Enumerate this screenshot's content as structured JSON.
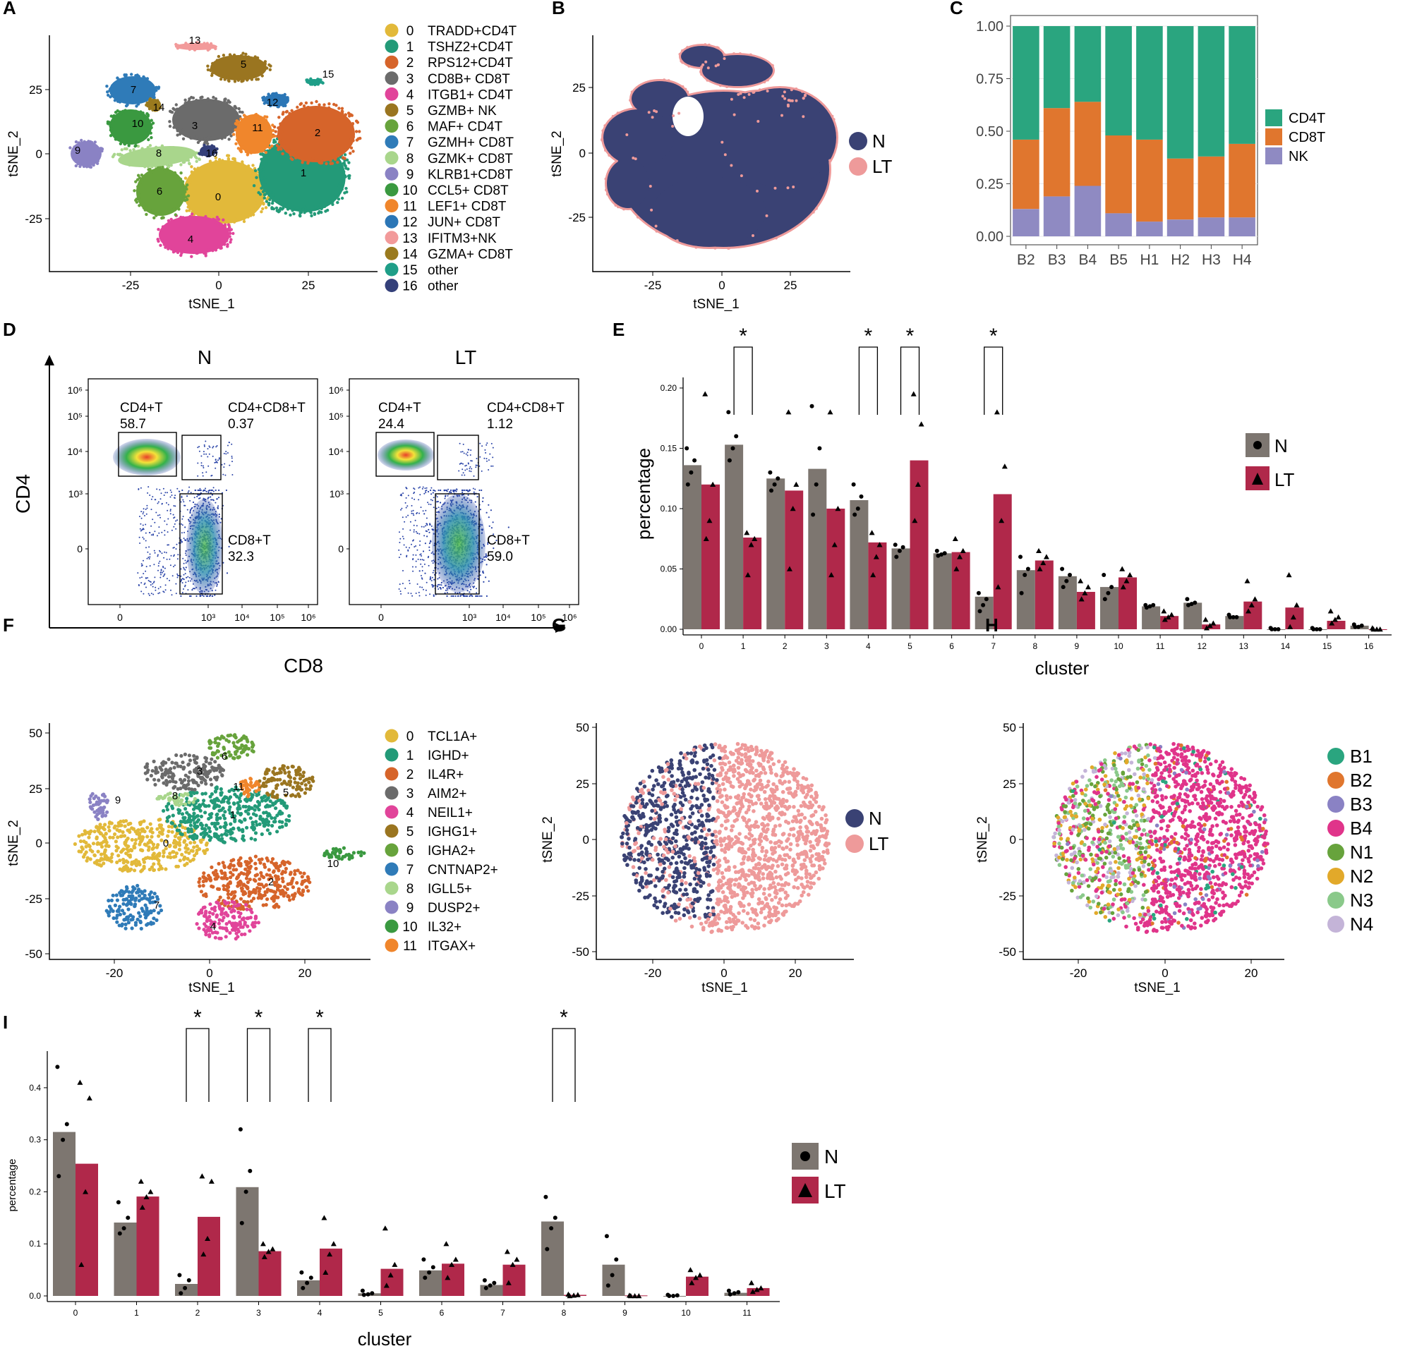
{
  "colors": {
    "N": "#3a4274",
    "LT": "#ee9a9a",
    "bar_N": "#7d7670",
    "bar_LT": "#b0284a",
    "CD4T": "#2aa57f",
    "CD8T": "#e0762e",
    "NK": "#8f8ac2"
  },
  "panels": {
    "A": {
      "label": "A",
      "xlabel": "tSNE_1",
      "ylabel": "tSNE_2",
      "xticks": [
        "-25",
        "0",
        "25"
      ],
      "yticks": [
        "25",
        "0",
        "-25"
      ],
      "legend": [
        {
          "key": "0",
          "text": "TRADD+CD4T",
          "color": "#e2b93a"
        },
        {
          "key": "1",
          "text": "TSHZ2+CD4T",
          "color": "#239a78"
        },
        {
          "key": "2",
          "text": "RPS12+CD4T",
          "color": "#d6642a"
        },
        {
          "key": "3",
          "text": "CD8B+ CD8T",
          "color": "#6b6b6b"
        },
        {
          "key": "4",
          "text": "ITGB1+ CD4T",
          "color": "#e1449a"
        },
        {
          "key": "5",
          "text": "GZMB+ NK",
          "color": "#9a7520"
        },
        {
          "key": "6",
          "text": "MAF+  CD4T",
          "color": "#67a33c"
        },
        {
          "key": "7",
          "text": "GZMH+ CD8T",
          "color": "#2f7bb8"
        },
        {
          "key": "8",
          "text": "GZMK+ CD8T",
          "color": "#a9d68c"
        },
        {
          "key": "9",
          "text": "KLRB1+CD8T",
          "color": "#8a82c4"
        },
        {
          "key": "10",
          "text": "CCL5+  CD8T",
          "color": "#3a9940"
        },
        {
          "key": "11",
          "text": "LEF1+  CD8T",
          "color": "#f0862c"
        },
        {
          "key": "12",
          "text": "JUN+    CD8T",
          "color": "#2b76b6"
        },
        {
          "key": "13",
          "text": "IFITM3+NK",
          "color": "#f29a9a"
        },
        {
          "key": "14",
          "text": "GZMA+ CD8T",
          "color": "#9a7a1e"
        },
        {
          "key": "15",
          "text": "other",
          "color": "#1f9e88"
        },
        {
          "key": "16",
          "text": "other",
          "color": "#34407a"
        }
      ],
      "cluster_labels": [
        "13",
        "5",
        "15",
        "7",
        "12",
        "14",
        "10",
        "3",
        "11",
        "2",
        "9",
        "8",
        "16",
        "1",
        "6",
        "0",
        "4"
      ]
    },
    "B": {
      "label": "B",
      "xlabel": "tSNE_1",
      "ylabel": "tSNE_2",
      "xticks": [
        "-25",
        "0",
        "25"
      ],
      "yticks": [
        "25",
        "0",
        "-25"
      ],
      "legend": [
        {
          "text": "N"
        },
        {
          "text": "LT"
        }
      ]
    },
    "D": {
      "label": "D",
      "title_N": "N",
      "title_LT": "LT",
      "ylabel": "CD4",
      "xlabel": "CD8",
      "y_ticks": [
        "10⁶",
        "10⁵",
        "10⁴",
        "10³",
        "0"
      ],
      "x_ticks": [
        "0",
        "10³",
        "10⁴",
        "10⁵",
        "10⁶"
      ],
      "gates_N": {
        "cd4": "CD4+T",
        "cd4_val": "58.7",
        "dp": "CD4+CD8+T",
        "dp_val": "0.37",
        "cd8": "CD8+T",
        "cd8_val": "32.3"
      },
      "gates_LT": {
        "cd4": "CD4+T",
        "cd4_val": "24.4",
        "dp": "CD4+CD8+T",
        "dp_val": "1.12",
        "cd8": "CD8+T",
        "cd8_val": "59.0"
      }
    },
    "F": {
      "label": "F",
      "xlabel": "tSNE_1",
      "ylabel": "tSNE_2",
      "xticks": [
        "-20",
        "0",
        "20"
      ],
      "yticks": [
        "50",
        "25",
        "0",
        "-25",
        "-50"
      ],
      "legend": [
        {
          "key": "0",
          "text": "TCL1A+",
          "color": "#e2b93a"
        },
        {
          "key": "1",
          "text": "IGHD+",
          "color": "#239a78"
        },
        {
          "key": "2",
          "text": "IL4R+",
          "color": "#d6642a"
        },
        {
          "key": "3",
          "text": "AIM2+",
          "color": "#6b6b6b"
        },
        {
          "key": "4",
          "text": "NEIL1+",
          "color": "#e1449a"
        },
        {
          "key": "5",
          "text": "IGHG1+",
          "color": "#9a7520"
        },
        {
          "key": "6",
          "text": "IGHA2+",
          "color": "#67a33c"
        },
        {
          "key": "7",
          "text": "CNTNAP2+",
          "color": "#2f7bb8"
        },
        {
          "key": "8",
          "text": "IGLL5+",
          "color": "#a9d68c"
        },
        {
          "key": "9",
          "text": "DUSP2+",
          "color": "#8a82c4"
        },
        {
          "key": "10",
          "text": "IL32+",
          "color": "#3a9940"
        },
        {
          "key": "11",
          "text": "ITGAX+",
          "color": "#f0862c"
        }
      ],
      "cluster_labels": [
        "6",
        "3",
        "11",
        "5",
        "9",
        "8",
        "1",
        "0",
        "2",
        "10",
        "7",
        "4"
      ]
    },
    "G": {
      "label": "G",
      "xlabel": "tSNE_1",
      "ylabel": "tSNE_2",
      "xticks": [
        "-20",
        "0",
        "20"
      ],
      "yticks": [
        "50",
        "25",
        "0",
        "-25",
        "-50"
      ],
      "legend": [
        {
          "text": "N"
        },
        {
          "text": "LT"
        }
      ]
    },
    "H": {
      "label": "H",
      "xlabel": "tSNE_1",
      "ylabel": "tSNE_2",
      "xticks": [
        "-20",
        "0",
        "20"
      ],
      "yticks": [
        "50",
        "25",
        "0",
        "-25",
        "-50"
      ],
      "legend": [
        {
          "text": "B1",
          "color": "#2aa57f"
        },
        {
          "text": "B2",
          "color": "#e0762e"
        },
        {
          "text": "B3",
          "color": "#8a82c4"
        },
        {
          "text": "B4",
          "color": "#e0348a"
        },
        {
          "text": "N1",
          "color": "#67a33c"
        },
        {
          "text": "N2",
          "color": "#e2a92a"
        },
        {
          "text": "N3",
          "color": "#8ac98a"
        },
        {
          "text": "N4",
          "color": "#c4b4d8"
        }
      ]
    }
  },
  "chart_data": [
    {
      "id": "C",
      "label": "C",
      "type": "bar",
      "stacked": true,
      "categories": [
        "B2",
        "B3",
        "B4",
        "B5",
        "H1",
        "H2",
        "H3",
        "H4"
      ],
      "series": [
        {
          "name": "NK",
          "values": [
            0.13,
            0.19,
            0.24,
            0.11,
            0.07,
            0.08,
            0.09,
            0.09
          ]
        },
        {
          "name": "CD8T",
          "values": [
            0.33,
            0.42,
            0.4,
            0.37,
            0.39,
            0.29,
            0.29,
            0.35
          ]
        },
        {
          "name": "CD4T",
          "values": [
            0.54,
            0.39,
            0.36,
            0.52,
            0.54,
            0.63,
            0.62,
            0.56
          ]
        }
      ],
      "legend": [
        "CD4T",
        "CD8T",
        "NK"
      ],
      "yticks": [
        "1.00",
        "0.75",
        "0.50",
        "0.25",
        "0.00"
      ],
      "ylim": [
        0,
        1
      ]
    },
    {
      "id": "E",
      "label": "E",
      "type": "bar",
      "xlabel": "cluster",
      "ylabel": "percentage",
      "categories": [
        "0",
        "1",
        "2",
        "3",
        "4",
        "5",
        "6",
        "7",
        "8",
        "9",
        "10",
        "11",
        "12",
        "13",
        "14",
        "15",
        "16"
      ],
      "series": [
        {
          "name": "N",
          "values": [
            0.136,
            0.153,
            0.125,
            0.133,
            0.107,
            0.067,
            0.063,
            0.027,
            0.049,
            0.044,
            0.035,
            0.019,
            0.022,
            0.011,
            0.0,
            0.0,
            0.003
          ],
          "points": [
            [
              0.15,
              0.14,
              0.13,
              0.12
            ],
            [
              0.18,
              0.16,
              0.15,
              0.14
            ],
            [
              0.13,
              0.125,
              0.12,
              0.115
            ],
            [
              0.185,
              0.15,
              0.12,
              0.095
            ],
            [
              0.12,
              0.11,
              0.1,
              0.095
            ],
            [
              0.07,
              0.068,
              0.065,
              0.06
            ],
            [
              0.065,
              0.063,
              0.062,
              0.061
            ],
            [
              0.03,
              0.025,
              0.02,
              0.015
            ],
            [
              0.06,
              0.05,
              0.045,
              0.03
            ],
            [
              0.05,
              0.045,
              0.04,
              0.035
            ],
            [
              0.045,
              0.035,
              0.03,
              0.025
            ],
            [
              0.02,
              0.02,
              0.019,
              0.018
            ],
            [
              0.025,
              0.022,
              0.021,
              0.02
            ],
            [
              0.012,
              0.01,
              0.01,
              0.01
            ],
            [
              0.001,
              0.0,
              0.0,
              0.0
            ],
            [
              0.001,
              0.0,
              0.0,
              0.0
            ],
            [
              0.004,
              0.003,
              0.002,
              0.002
            ]
          ]
        },
        {
          "name": "LT",
          "values": [
            0.12,
            0.076,
            0.115,
            0.1,
            0.072,
            0.14,
            0.064,
            0.112,
            0.057,
            0.031,
            0.043,
            0.011,
            0.004,
            0.023,
            0.018,
            0.007,
            0.0
          ],
          "points": [
            [
              0.195,
              0.12,
              0.09,
              0.075
            ],
            [
              0.08,
              0.075,
              0.07,
              0.045
            ],
            [
              0.18,
              0.12,
              0.1,
              0.05
            ],
            [
              0.18,
              0.1,
              0.07,
              0.045
            ],
            [
              0.08,
              0.07,
              0.06,
              0.045
            ],
            [
              0.195,
              0.17,
              0.12,
              0.09
            ],
            [
              0.075,
              0.065,
              0.06,
              0.05
            ],
            [
              0.18,
              0.135,
              0.09,
              0.035
            ],
            [
              0.065,
              0.06,
              0.055,
              0.05
            ],
            [
              0.04,
              0.035,
              0.03,
              0.025
            ],
            [
              0.05,
              0.045,
              0.04,
              0.035
            ],
            [
              0.015,
              0.012,
              0.01,
              0.008
            ],
            [
              0.008,
              0.005,
              0.003,
              0.001
            ],
            [
              0.04,
              0.025,
              0.02,
              0.015
            ],
            [
              0.045,
              0.02,
              0.01,
              0.002
            ],
            [
              0.015,
              0.01,
              0.008,
              0.005
            ],
            [
              0.001,
              0.0,
              0.0,
              0.0
            ]
          ]
        }
      ],
      "significant": [
        "1",
        "4",
        "5",
        "7"
      ],
      "sig_label": "*",
      "yticks": [
        "0.20",
        "0.15",
        "0.10",
        "0.05",
        "0.00"
      ],
      "ylim": [
        0,
        0.2
      ],
      "legend": [
        "N",
        "LT"
      ]
    },
    {
      "id": "I",
      "label": "I",
      "type": "bar",
      "xlabel": "cluster",
      "ylabel": "percentage",
      "categories": [
        "0",
        "1",
        "2",
        "3",
        "4",
        "5",
        "6",
        "7",
        "8",
        "9",
        "10",
        "11"
      ],
      "series": [
        {
          "name": "N",
          "values": [
            0.315,
            0.141,
            0.023,
            0.209,
            0.03,
            0.005,
            0.049,
            0.021,
            0.143,
            0.06,
            0.0,
            0.006
          ],
          "points": [
            [
              0.44,
              0.33,
              0.3,
              0.23
            ],
            [
              0.18,
              0.15,
              0.13,
              0.12
            ],
            [
              0.04,
              0.03,
              0.015,
              0.005
            ],
            [
              0.32,
              0.24,
              0.2,
              0.14
            ],
            [
              0.045,
              0.035,
              0.025,
              0.015
            ],
            [
              0.01,
              0.005,
              0.003,
              0.002
            ],
            [
              0.07,
              0.055,
              0.045,
              0.035
            ],
            [
              0.03,
              0.025,
              0.02,
              0.015
            ],
            [
              0.19,
              0.15,
              0.13,
              0.09
            ],
            [
              0.115,
              0.07,
              0.04,
              0.02
            ],
            [
              0.002,
              0.001,
              0.0,
              0.0
            ],
            [
              0.01,
              0.007,
              0.005,
              0.003
            ]
          ]
        },
        {
          "name": "LT",
          "values": [
            0.254,
            0.191,
            0.152,
            0.086,
            0.091,
            0.052,
            0.062,
            0.06,
            0.002,
            0.001,
            0.037,
            0.015
          ],
          "points": [
            [
              0.41,
              0.38,
              0.2,
              0.06
            ],
            [
              0.22,
              0.2,
              0.19,
              0.17
            ],
            [
              0.23,
              0.22,
              0.11,
              0.08
            ],
            [
              0.1,
              0.09,
              0.085,
              0.075
            ],
            [
              0.15,
              0.1,
              0.08,
              0.045
            ],
            [
              0.13,
              0.06,
              0.04,
              0.02
            ],
            [
              0.1,
              0.07,
              0.06,
              0.035
            ],
            [
              0.085,
              0.07,
              0.06,
              0.025
            ],
            [
              0.003,
              0.002,
              0.001,
              0.0
            ],
            [
              0.001,
              0.0,
              0.0,
              0.0
            ],
            [
              0.05,
              0.04,
              0.035,
              0.025
            ],
            [
              0.025,
              0.015,
              0.012,
              0.008
            ]
          ]
        }
      ],
      "significant": [
        "2",
        "3",
        "4",
        "8"
      ],
      "sig_label": "*",
      "yticks": [
        "0.4",
        "0.3",
        "0.2",
        "0.1",
        "0.0"
      ],
      "ylim": [
        0,
        0.45
      ],
      "legend": [
        "N",
        "LT"
      ]
    }
  ]
}
